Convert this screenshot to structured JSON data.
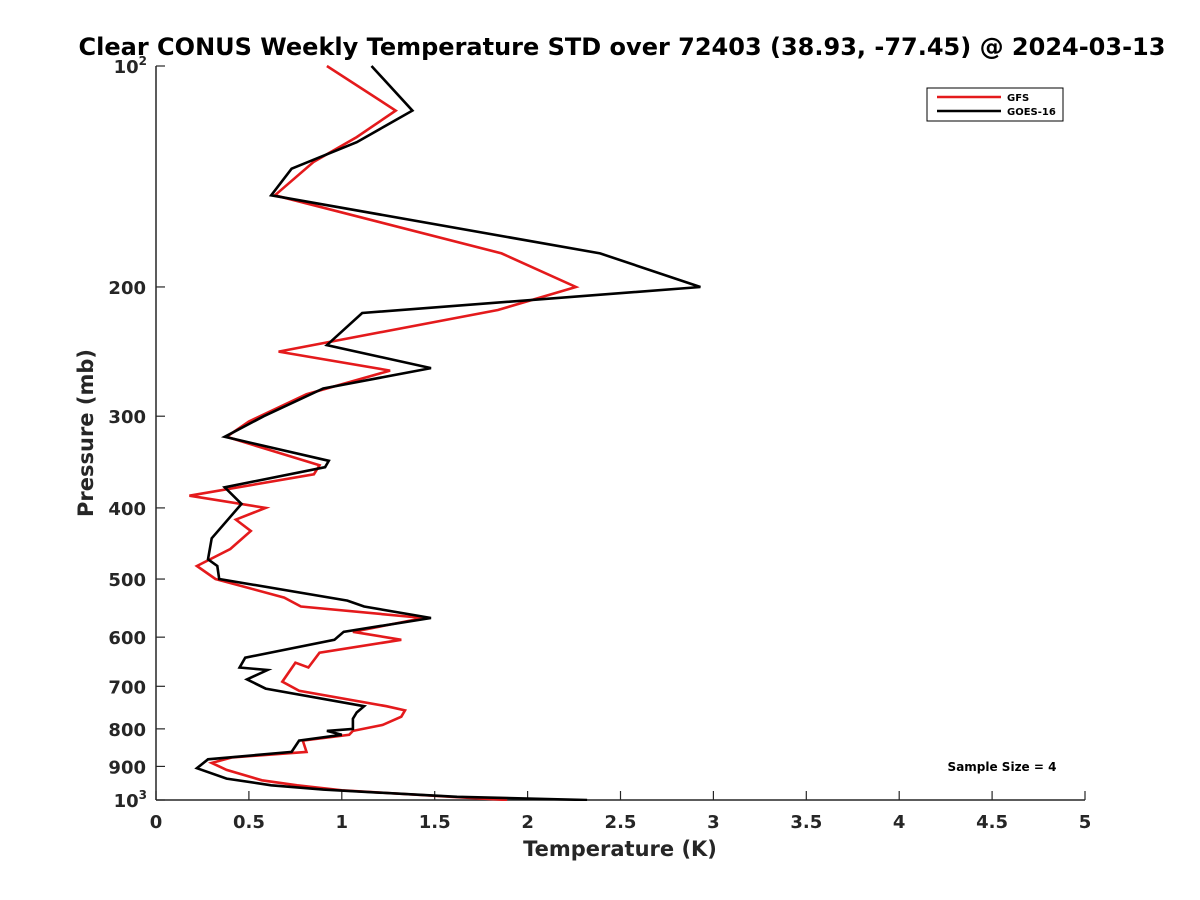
{
  "chart_data": {
    "type": "line",
    "title": "Clear CONUS Weekly Temperature STD over 72403 (38.93, -77.45) @ 2024-03-13",
    "xlabel": "Temperature (K)",
    "ylabel": "Pressure (mb)",
    "xlim": [
      0,
      5
    ],
    "ylim": [
      1000,
      100
    ],
    "y_scale": "log",
    "y_reversed": true,
    "x_ticks": [
      "0",
      "0.5",
      "1",
      "1.5",
      "2",
      "2.5",
      "3",
      "3.5",
      "4",
      "4.5",
      "5"
    ],
    "y_ticks": [
      {
        "value": 100,
        "base": "10",
        "exp": "2"
      },
      {
        "value": 200,
        "label": "200"
      },
      {
        "value": 300,
        "label": "300"
      },
      {
        "value": 400,
        "label": "400"
      },
      {
        "value": 500,
        "label": "500"
      },
      {
        "value": 600,
        "label": "600"
      },
      {
        "value": 700,
        "label": "700"
      },
      {
        "value": 800,
        "label": "800"
      },
      {
        "value": 900,
        "label": "900"
      },
      {
        "value": 1000,
        "base": "10",
        "exp": "3"
      }
    ],
    "grid": false,
    "legend_position": "top-right",
    "annotation": "Sample Size = 4",
    "series": [
      {
        "name": "GFS",
        "color": "#e41a1c",
        "points": [
          [
            0.92,
            100
          ],
          [
            1.29,
            115
          ],
          [
            1.08,
            125
          ],
          [
            0.85,
            135
          ],
          [
            0.64,
            150
          ],
          [
            1.86,
            180
          ],
          [
            2.26,
            200
          ],
          [
            1.84,
            215
          ],
          [
            0.66,
            245
          ],
          [
            1.26,
            260
          ],
          [
            0.81,
            280
          ],
          [
            0.5,
            305
          ],
          [
            0.38,
            320
          ],
          [
            0.88,
            350
          ],
          [
            0.85,
            360
          ],
          [
            0.18,
            385
          ],
          [
            0.59,
            400
          ],
          [
            0.43,
            415
          ],
          [
            0.51,
            430
          ],
          [
            0.4,
            455
          ],
          [
            0.22,
            480
          ],
          [
            0.32,
            500
          ],
          [
            0.69,
            530
          ],
          [
            0.78,
            545
          ],
          [
            1.44,
            565
          ],
          [
            1.06,
            590
          ],
          [
            1.32,
            605
          ],
          [
            0.88,
            630
          ],
          [
            0.82,
            660
          ],
          [
            0.75,
            650
          ],
          [
            0.68,
            690
          ],
          [
            0.77,
            710
          ],
          [
            1.24,
            745
          ],
          [
            1.34,
            755
          ],
          [
            1.32,
            770
          ],
          [
            1.22,
            790
          ],
          [
            1.06,
            805
          ],
          [
            1.04,
            815
          ],
          [
            0.79,
            830
          ],
          [
            0.81,
            860
          ],
          [
            0.41,
            875
          ],
          [
            0.3,
            890
          ],
          [
            0.38,
            910
          ],
          [
            0.57,
            940
          ],
          [
            0.76,
            955
          ],
          [
            1.0,
            970
          ],
          [
            1.59,
            990
          ],
          [
            1.89,
            1000
          ]
        ]
      },
      {
        "name": "GOES-16",
        "color": "#000000",
        "points": [
          [
            1.16,
            100
          ],
          [
            1.38,
            115
          ],
          [
            1.08,
            127
          ],
          [
            0.73,
            138
          ],
          [
            0.62,
            150
          ],
          [
            2.39,
            180
          ],
          [
            2.93,
            200
          ],
          [
            1.11,
            217
          ],
          [
            0.92,
            240
          ],
          [
            1.48,
            258
          ],
          [
            0.9,
            275
          ],
          [
            0.58,
            300
          ],
          [
            0.37,
            320
          ],
          [
            0.93,
            345
          ],
          [
            0.91,
            352
          ],
          [
            0.37,
            375
          ],
          [
            0.46,
            395
          ],
          [
            0.3,
            440
          ],
          [
            0.28,
            470
          ],
          [
            0.33,
            480
          ],
          [
            0.34,
            500
          ],
          [
            1.03,
            535
          ],
          [
            1.12,
            545
          ],
          [
            1.48,
            565
          ],
          [
            1.01,
            590
          ],
          [
            0.96,
            605
          ],
          [
            0.48,
            640
          ],
          [
            0.45,
            660
          ],
          [
            0.6,
            665
          ],
          [
            0.49,
            685
          ],
          [
            0.59,
            705
          ],
          [
            1.12,
            745
          ],
          [
            1.08,
            760
          ],
          [
            1.06,
            775
          ],
          [
            1.06,
            800
          ],
          [
            0.92,
            805
          ],
          [
            1.0,
            815
          ],
          [
            0.77,
            830
          ],
          [
            0.73,
            860
          ],
          [
            0.28,
            880
          ],
          [
            0.22,
            905
          ],
          [
            0.38,
            935
          ],
          [
            0.62,
            955
          ],
          [
            0.9,
            968
          ],
          [
            1.62,
            990
          ],
          [
            2.32,
            1000
          ]
        ]
      }
    ]
  }
}
